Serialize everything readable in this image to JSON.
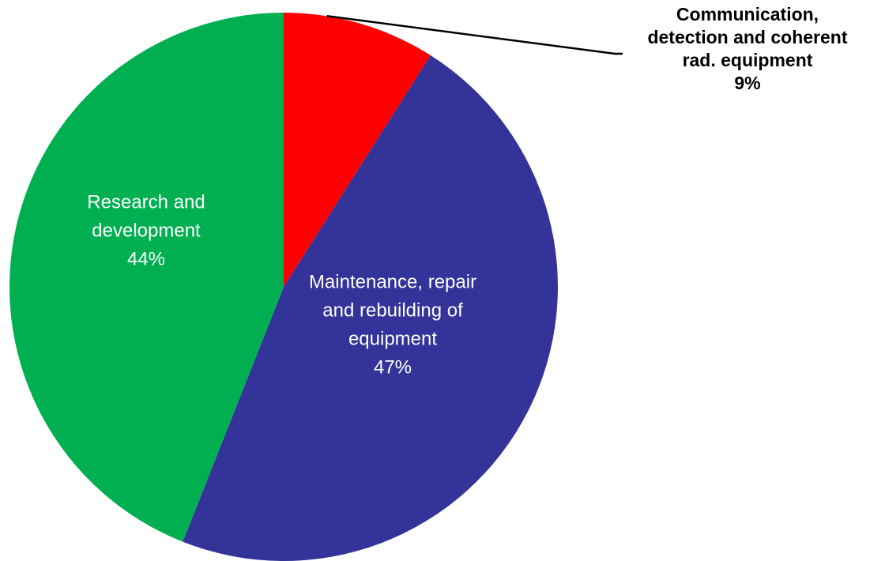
{
  "chart_data": {
    "type": "pie",
    "title": "",
    "slices": [
      {
        "label_lines": [
          "Communication,",
          "detection and coherent",
          "rad. equipment"
        ],
        "value": 9,
        "value_label": "9%",
        "color": "#ff0000",
        "label_position": "outside-top-right"
      },
      {
        "label_lines": [
          "Maintenance, repair",
          "and rebuilding of",
          "equipment"
        ],
        "value": 47,
        "value_label": "47%",
        "color": "#333399",
        "label_position": "inside"
      },
      {
        "label_lines": [
          "Research and",
          "development"
        ],
        "value": 44,
        "value_label": "44%",
        "color": "#00b050",
        "label_position": "inside"
      }
    ],
    "start": "12 o'clock",
    "direction": "clockwise",
    "legend": "none"
  }
}
